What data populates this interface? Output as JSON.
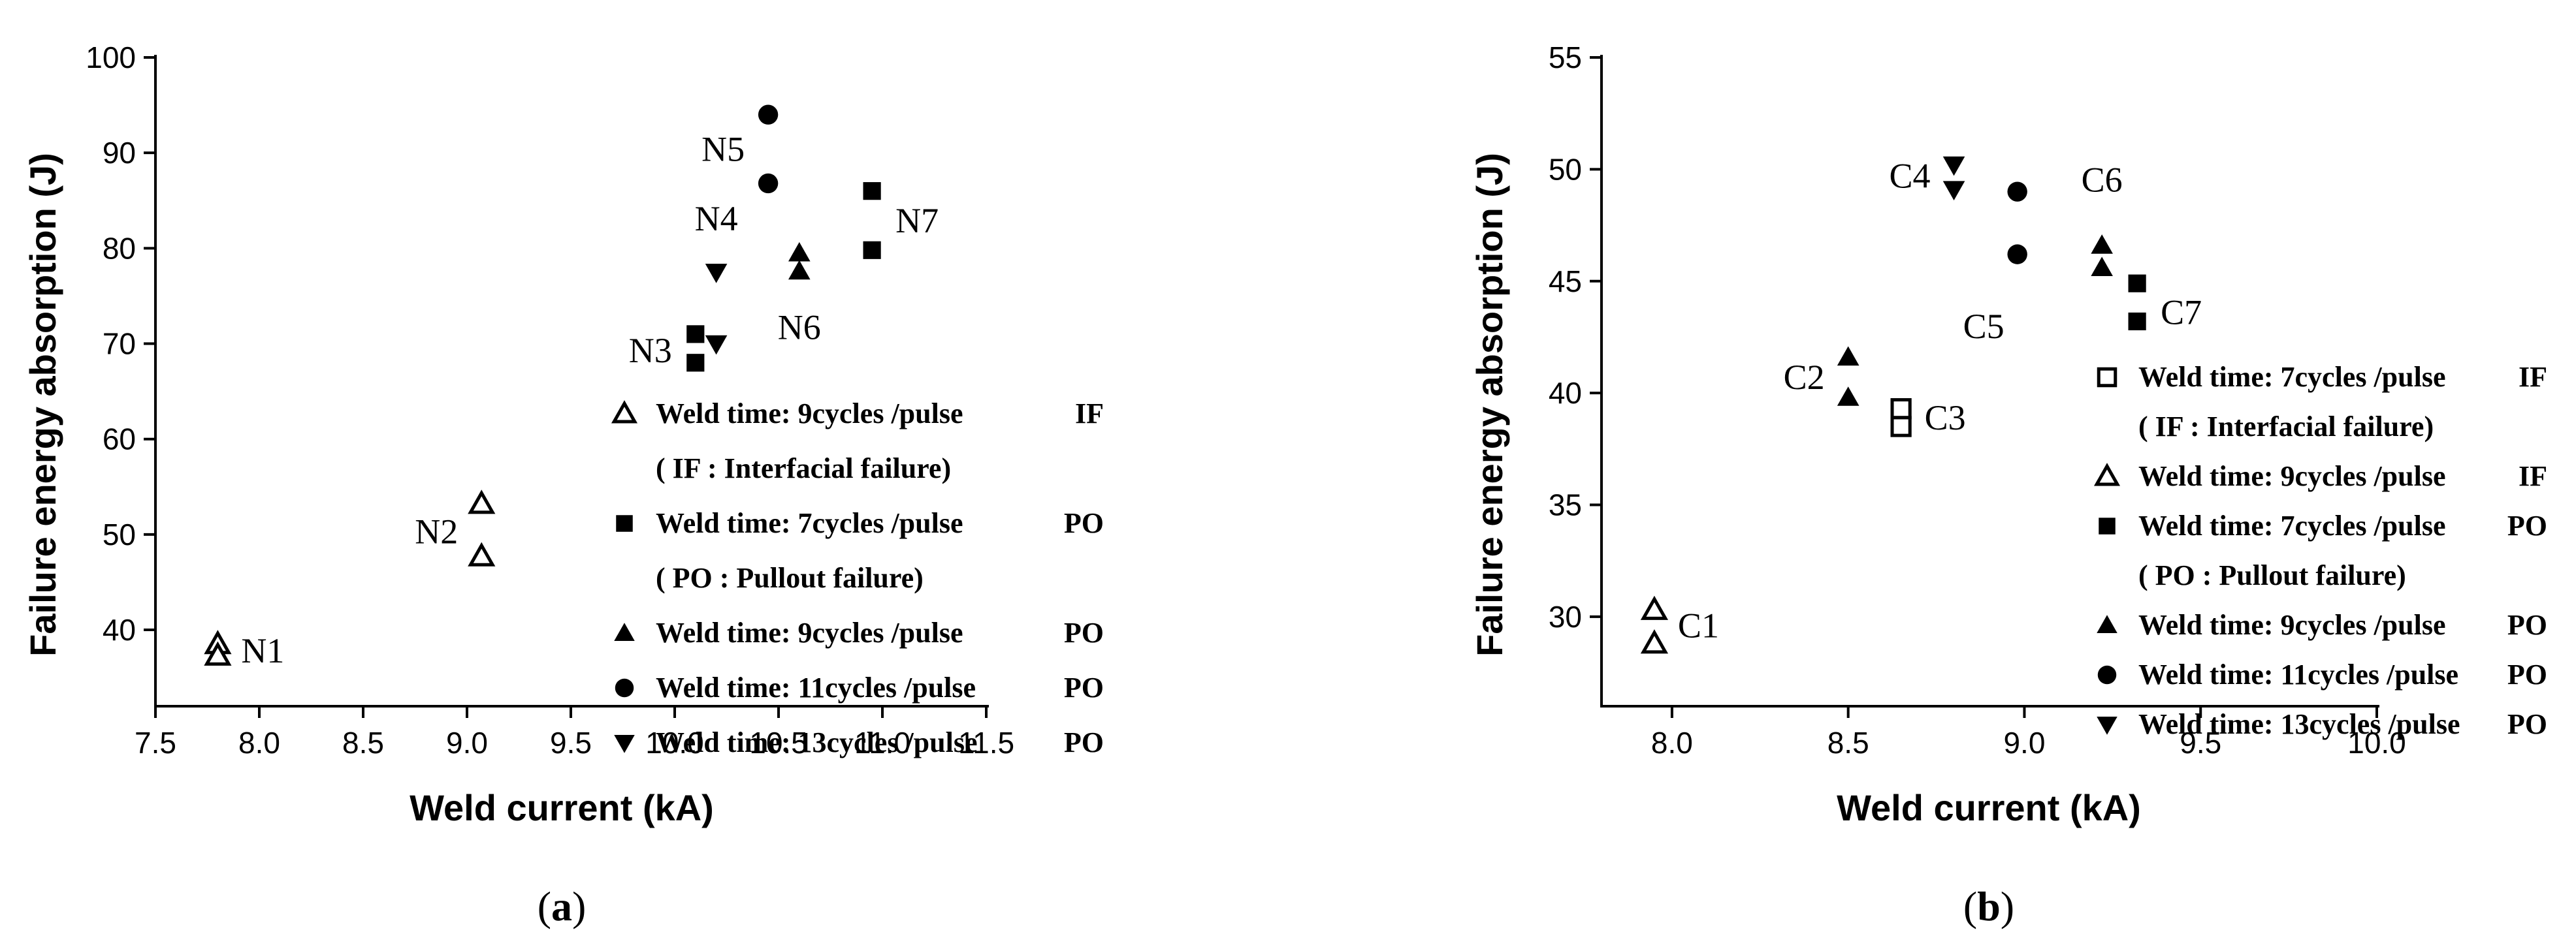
{
  "chart_data": [
    {
      "type": "scatter",
      "caption": {
        "open": "(",
        "letter": "a",
        "close": ")"
      },
      "xlabel": "Weld current (kA)",
      "ylabel": "Failure energy absorption (J)",
      "xlim": [
        7.5,
        11.5
      ],
      "ylim": [
        32,
        100
      ],
      "xticks": [
        "7.5",
        "8.0",
        "8.5",
        "9.0",
        "9.5",
        "10.0",
        "10.5",
        "11.0",
        "11.5"
      ],
      "yticks": [
        "40",
        "50",
        "60",
        "70",
        "80",
        "90",
        "100"
      ],
      "legend_position": "lower-right",
      "series": [
        {
          "marker": "open-triangle-up",
          "points": [
            [
              7.8,
              38.5
            ],
            [
              7.8,
              37.3
            ],
            [
              9.07,
              53.2
            ],
            [
              9.07,
              47.7
            ]
          ]
        },
        {
          "marker": "square",
          "points": [
            [
              10.1,
              71.0
            ],
            [
              10.1,
              68.0
            ],
            [
              10.95,
              86.0
            ],
            [
              10.95,
              79.8
            ]
          ]
        },
        {
          "marker": "triangle-up",
          "points": [
            [
              10.6,
              79.5
            ],
            [
              10.6,
              77.6
            ]
          ]
        },
        {
          "marker": "circle",
          "points": [
            [
              10.45,
              94.0
            ],
            [
              10.45,
              86.8
            ]
          ]
        },
        {
          "marker": "triangle-down",
          "points": [
            [
              10.2,
              77.5
            ],
            [
              10.2,
              70.0
            ]
          ]
        }
      ],
      "point_labels": [
        {
          "text": "N1",
          "x": 7.8,
          "y": 37.8,
          "side": "right"
        },
        {
          "text": "N2",
          "x": 9.07,
          "y": 50.3,
          "side": "left"
        },
        {
          "text": "N3",
          "x": 10.1,
          "y": 69.3,
          "side": "left"
        },
        {
          "text": "N4",
          "x": 10.2,
          "y": 80.9,
          "side": "above"
        },
        {
          "text": "N5",
          "x": 10.45,
          "y": 90.4,
          "side": "left"
        },
        {
          "text": "N6",
          "x": 10.6,
          "y": 74.3,
          "side": "below"
        },
        {
          "text": "N7",
          "x": 10.95,
          "y": 82.9,
          "side": "right"
        }
      ],
      "legend": [
        {
          "marker": "open-triangle-up",
          "text": "Weld time: 9cycles /pulse",
          "tag": "IF"
        },
        {
          "marker": "none",
          "text": "( IF : Interfacial failure)",
          "tag": ""
        },
        {
          "marker": "square",
          "text": "Weld time: 7cycles /pulse",
          "tag": "PO"
        },
        {
          "marker": "none",
          "text": "( PO : Pullout failure)",
          "tag": ""
        },
        {
          "marker": "triangle-up",
          "text": "Weld time: 9cycles /pulse",
          "tag": "PO"
        },
        {
          "marker": "circle",
          "text": "Weld time: 11cycles /pulse",
          "tag": "PO"
        },
        {
          "marker": "triangle-down",
          "text": "Weld time: 13cycles /pulse",
          "tag": "PO"
        }
      ]
    },
    {
      "type": "scatter",
      "caption": {
        "open": "(",
        "letter": "b",
        "close": ")"
      },
      "xlabel": "Weld current (kA)",
      "ylabel": "Failure energy absorption (J)",
      "xlim": [
        7.8,
        10.0
      ],
      "ylim": [
        26,
        55
      ],
      "xticks": [
        "8.0",
        "8.5",
        "9.0",
        "9.5",
        "10.0"
      ],
      "yticks": [
        "30",
        "35",
        "40",
        "45",
        "50",
        "55"
      ],
      "legend_position": "lower-right",
      "series": [
        {
          "marker": "open-square",
          "points": [
            [
              8.65,
              39.3
            ],
            [
              8.65,
              38.5
            ]
          ]
        },
        {
          "marker": "open-triangle-up",
          "points": [
            [
              7.95,
              30.3
            ],
            [
              7.95,
              28.8
            ]
          ]
        },
        {
          "marker": "square",
          "points": [
            [
              9.32,
              44.9
            ],
            [
              9.32,
              43.2
            ]
          ]
        },
        {
          "marker": "triangle-up",
          "points": [
            [
              8.5,
              41.6
            ],
            [
              8.5,
              39.8
            ],
            [
              9.22,
              46.6
            ],
            [
              9.22,
              45.6
            ]
          ]
        },
        {
          "marker": "circle",
          "points": [
            [
              8.98,
              49.0
            ],
            [
              8.98,
              46.2
            ]
          ]
        },
        {
          "marker": "triangle-down",
          "points": [
            [
              8.8,
              50.2
            ],
            [
              8.8,
              49.1
            ]
          ]
        }
      ],
      "point_labels": [
        {
          "text": "C1",
          "x": 7.95,
          "y": 29.6,
          "side": "right"
        },
        {
          "text": "C2",
          "x": 8.5,
          "y": 40.7,
          "side": "left"
        },
        {
          "text": "C3",
          "x": 8.65,
          "y": 38.9,
          "side": "right"
        },
        {
          "text": "C4",
          "x": 8.8,
          "y": 49.7,
          "side": "left"
        },
        {
          "text": "C5",
          "x": 8.98,
          "y": 44.2,
          "side": "left-below"
        },
        {
          "text": "C6",
          "x": 9.22,
          "y": 48.6,
          "side": "above"
        },
        {
          "text": "C7",
          "x": 9.32,
          "y": 43.6,
          "side": "right"
        }
      ],
      "legend": [
        {
          "marker": "open-square",
          "text": "Weld time: 7cycles /pulse",
          "tag": "IF"
        },
        {
          "marker": "none",
          "text": "( IF : Interfacial failure)",
          "tag": ""
        },
        {
          "marker": "open-triangle-up",
          "text": "Weld time: 9cycles /pulse",
          "tag": "IF"
        },
        {
          "marker": "square",
          "text": "Weld time: 7cycles /pulse",
          "tag": "PO"
        },
        {
          "marker": "none",
          "text": "( PO : Pullout failure)",
          "tag": ""
        },
        {
          "marker": "triangle-up",
          "text": "Weld time: 9cycles /pulse",
          "tag": "PO"
        },
        {
          "marker": "circle",
          "text": "Weld time: 11cycles /pulse",
          "tag": "PO"
        },
        {
          "marker": "triangle-down",
          "text": "Weld time: 13cycles /pulse",
          "tag": "PO"
        }
      ]
    }
  ]
}
